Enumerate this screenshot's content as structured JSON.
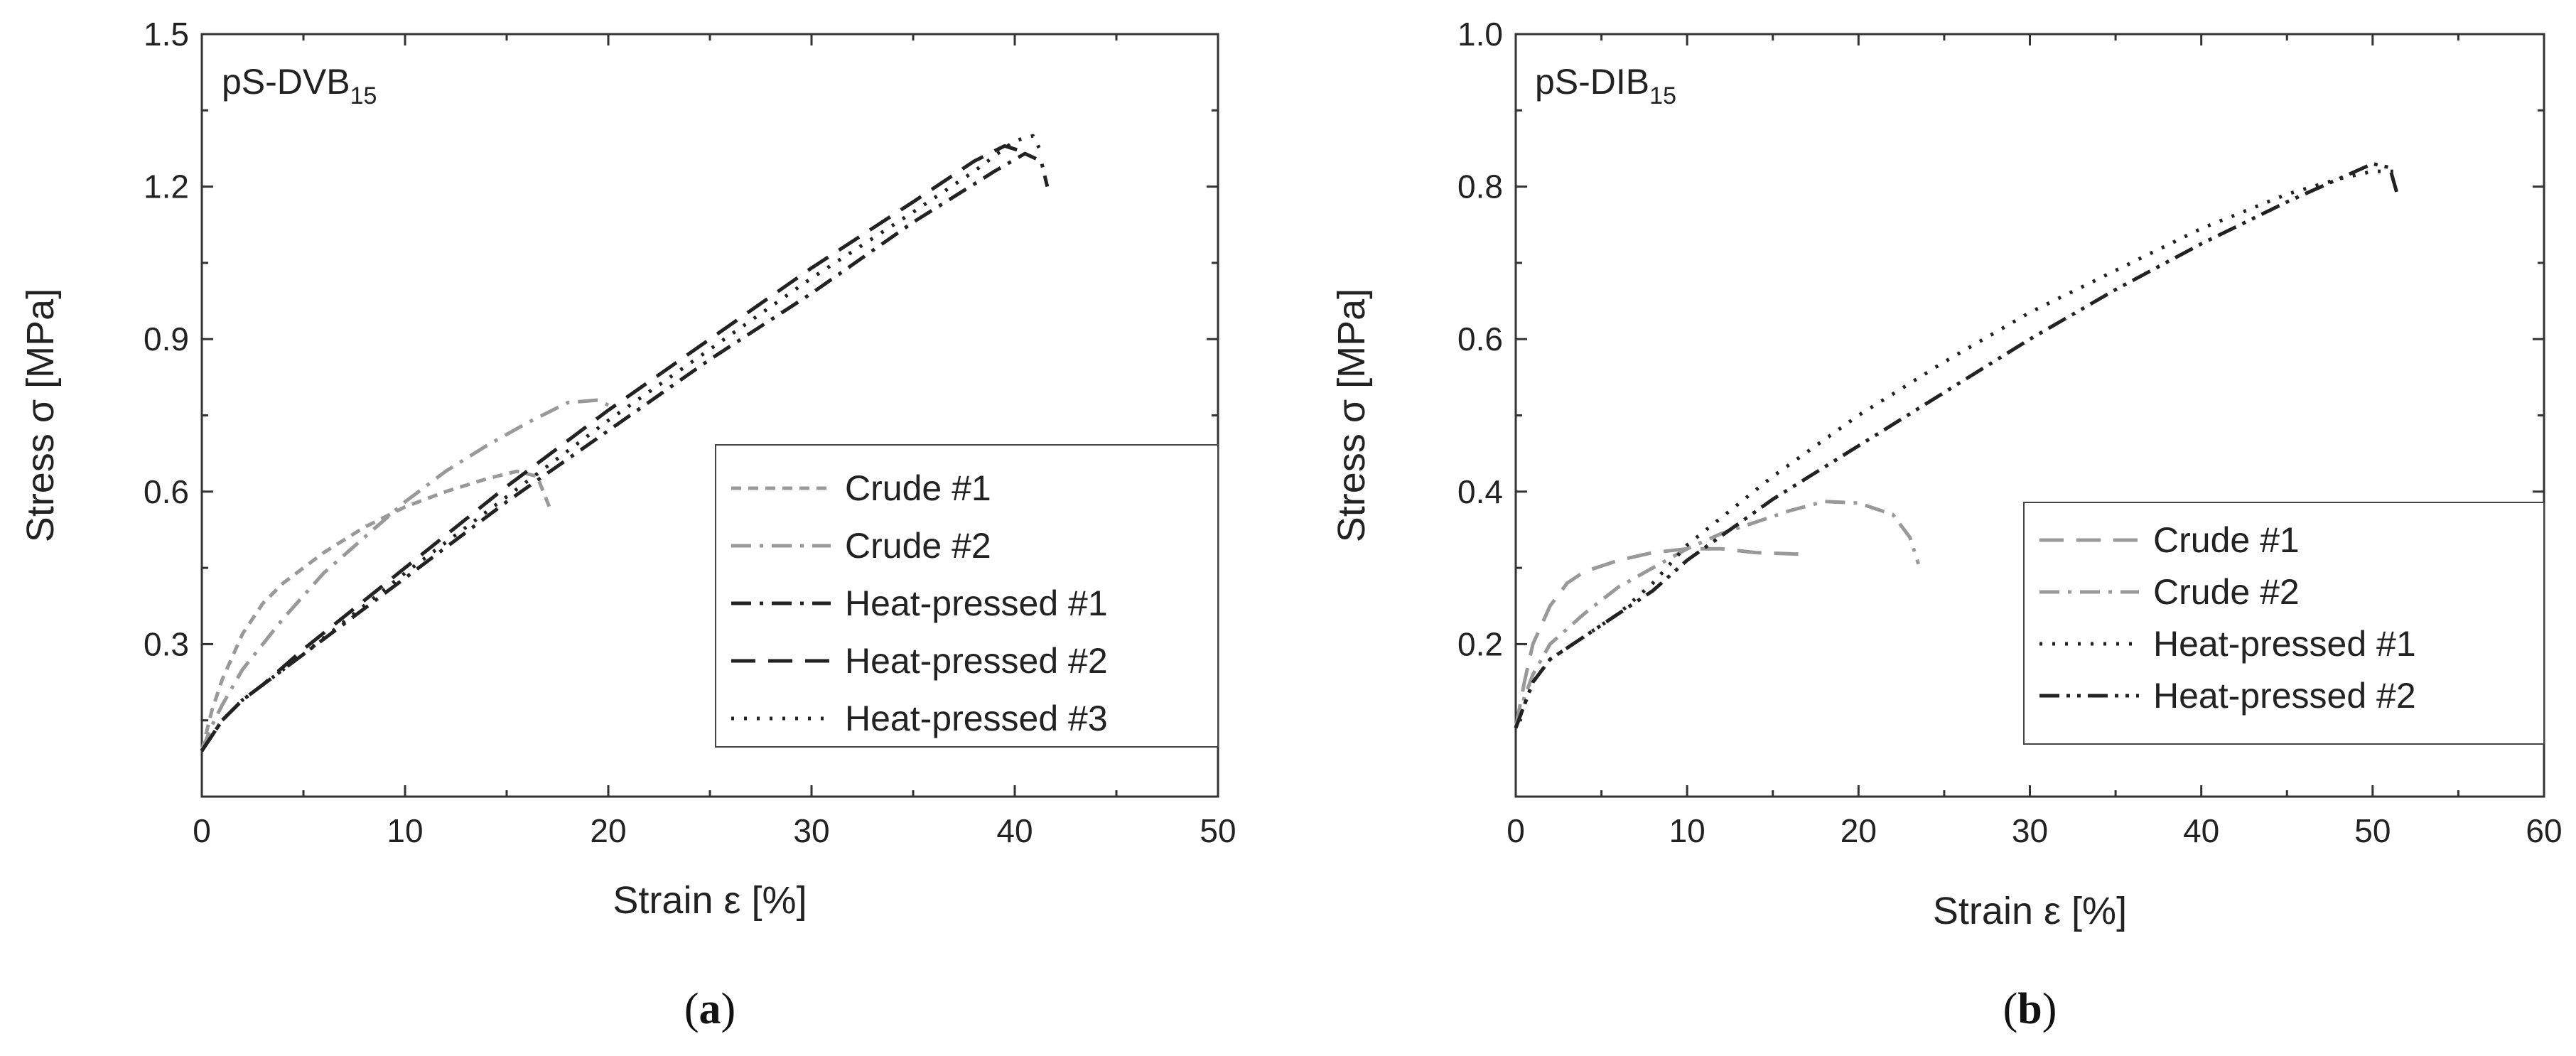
{
  "chart_data": [
    {
      "id": "a",
      "type": "line",
      "panel_label": "a",
      "annotation": {
        "text": "pS-DVB",
        "sub": "15"
      },
      "xlabel": "Strain ε [%]",
      "ylabel": "Stress σ [MPa]",
      "xlim": [
        0,
        50
      ],
      "ylim": [
        0,
        1.5
      ],
      "xticks": [
        0,
        10,
        20,
        30,
        40,
        50
      ],
      "yticks": [
        0.3,
        0.6,
        0.9,
        1.2,
        1.5
      ],
      "ytick_labels": [
        "0.3",
        "0.6",
        "0.9",
        "1.2",
        "1.5"
      ],
      "legend_position": "center-right",
      "series": [
        {
          "name": "Crude #1",
          "color": "#999999",
          "dash": "short-dash",
          "x": [
            0,
            0.5,
            1,
            2,
            3,
            4,
            6,
            8,
            10,
            12,
            14,
            15.5,
            16.5,
            17.2
          ],
          "y": [
            0.09,
            0.17,
            0.23,
            0.32,
            0.38,
            0.42,
            0.48,
            0.53,
            0.57,
            0.6,
            0.625,
            0.64,
            0.63,
            0.56
          ]
        },
        {
          "name": "Crude #2",
          "color": "#999999",
          "dash": "dash-dot",
          "x": [
            0,
            0.5,
            1,
            2,
            4,
            6,
            8,
            10,
            12,
            14,
            16,
            18,
            19.5,
            20
          ],
          "y": [
            0.09,
            0.14,
            0.18,
            0.25,
            0.35,
            0.44,
            0.51,
            0.58,
            0.64,
            0.69,
            0.735,
            0.775,
            0.78,
            0.77
          ]
        },
        {
          "name": "Heat-pressed #1",
          "color": "#222222",
          "dash": "dash-dot",
          "x": [
            0,
            1,
            2,
            3,
            5,
            10,
            15,
            20,
            25,
            30,
            35,
            39,
            40.5,
            41.3,
            41.6
          ],
          "y": [
            0.09,
            0.15,
            0.19,
            0.22,
            0.28,
            0.43,
            0.58,
            0.72,
            0.86,
            0.99,
            1.13,
            1.23,
            1.265,
            1.25,
            1.2
          ]
        },
        {
          "name": "Heat-pressed #2",
          "color": "#222222",
          "dash": "long-dash",
          "x": [
            0,
            1,
            2,
            3,
            5,
            10,
            15,
            20,
            25,
            30,
            35,
            38,
            39.5,
            40.3
          ],
          "y": [
            0.09,
            0.15,
            0.19,
            0.22,
            0.29,
            0.45,
            0.61,
            0.76,
            0.9,
            1.04,
            1.17,
            1.25,
            1.28,
            1.27
          ]
        },
        {
          "name": "Heat-pressed #3",
          "color": "#222222",
          "dash": "dot",
          "x": [
            0,
            1,
            2,
            3,
            5,
            10,
            15,
            20,
            25,
            30,
            35,
            38,
            40,
            40.9,
            41.4
          ],
          "y": [
            0.09,
            0.15,
            0.19,
            0.22,
            0.28,
            0.44,
            0.59,
            0.74,
            0.88,
            1.02,
            1.15,
            1.23,
            1.29,
            1.3,
            1.26
          ]
        }
      ]
    },
    {
      "id": "b",
      "type": "line",
      "panel_label": "b",
      "annotation": {
        "text": "pS-DIB",
        "sub": "15"
      },
      "xlabel": "Strain ε [%]",
      "ylabel": "Stress σ [MPa]",
      "xlim": [
        0,
        60
      ],
      "ylim": [
        0,
        1.0
      ],
      "xticks": [
        0,
        10,
        20,
        30,
        40,
        50,
        60
      ],
      "yticks": [
        0.2,
        0.4,
        0.6,
        0.8,
        1.0
      ],
      "ytick_labels": [
        "0.2",
        "0.4",
        "0.6",
        "0.8",
        "1.0"
      ],
      "legend_position": "bottom-right",
      "series": [
        {
          "name": "Crude #1",
          "color": "#999999",
          "dash": "long-dash",
          "x": [
            0,
            0.5,
            1,
            2,
            3,
            4,
            6,
            8,
            10,
            12,
            14,
            16.5
          ],
          "y": [
            0.09,
            0.15,
            0.2,
            0.25,
            0.28,
            0.295,
            0.31,
            0.32,
            0.325,
            0.325,
            0.32,
            0.318
          ]
        },
        {
          "name": "Crude #2",
          "color": "#999999",
          "dash": "dash-dot",
          "x": [
            0,
            0.5,
            1,
            2,
            4,
            6,
            8,
            10,
            12,
            14,
            16,
            18,
            20,
            22,
            23,
            23.5
          ],
          "y": [
            0.09,
            0.13,
            0.16,
            0.2,
            0.24,
            0.275,
            0.3,
            0.325,
            0.345,
            0.36,
            0.375,
            0.387,
            0.385,
            0.37,
            0.34,
            0.305
          ]
        },
        {
          "name": "Heat-pressed #1",
          "color": "#222222",
          "dash": "dot",
          "x": [
            0,
            1,
            2,
            4,
            6,
            8,
            10,
            15,
            20,
            25,
            30,
            35,
            40,
            45,
            48,
            50,
            51.2
          ],
          "y": [
            0.09,
            0.15,
            0.18,
            0.21,
            0.24,
            0.28,
            0.33,
            0.42,
            0.5,
            0.57,
            0.635,
            0.69,
            0.745,
            0.79,
            0.81,
            0.82,
            0.82
          ]
        },
        {
          "name": "Heat-pressed #2",
          "color": "#222222",
          "dash": "dash-dot-dot",
          "x": [
            0,
            1,
            2,
            4,
            6,
            8,
            10,
            15,
            20,
            25,
            30,
            35,
            40,
            45,
            48,
            50,
            51,
            51.5
          ],
          "y": [
            0.09,
            0.15,
            0.18,
            0.21,
            0.24,
            0.27,
            0.31,
            0.39,
            0.46,
            0.53,
            0.6,
            0.665,
            0.725,
            0.78,
            0.81,
            0.83,
            0.825,
            0.785
          ]
        }
      ]
    }
  ]
}
